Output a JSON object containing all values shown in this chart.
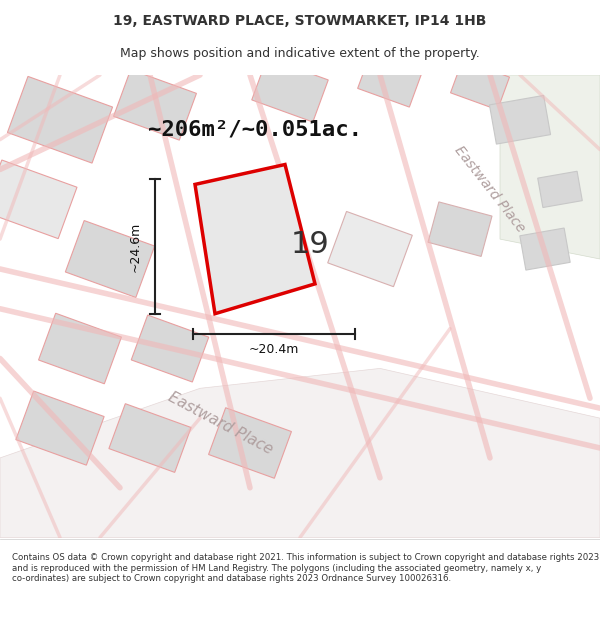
{
  "title_line1": "19, EASTWARD PLACE, STOWMARKET, IP14 1HB",
  "title_line2": "Map shows position and indicative extent of the property.",
  "footer_text": "Contains OS data © Crown copyright and database right 2021. This information is subject to Crown copyright and database rights 2023 and is reproduced with the permission of HM Land Registry. The polygons (including the associated geometry, namely x, y co-ordinates) are subject to Crown copyright and database rights 2023 Ordnance Survey 100026316.",
  "area_label": "~206m²/~0.051ac.",
  "number_label": "19",
  "dim_h": "~24.6m",
  "dim_w": "~20.4m",
  "road_label1": "Eastward Place",
  "road_label2": "Eastward Place",
  "map_bg": "#f0eeee",
  "plot_color_red": "#dd0000",
  "building_fill": "#d8d8d8",
  "green_area": "#e8f0e8"
}
